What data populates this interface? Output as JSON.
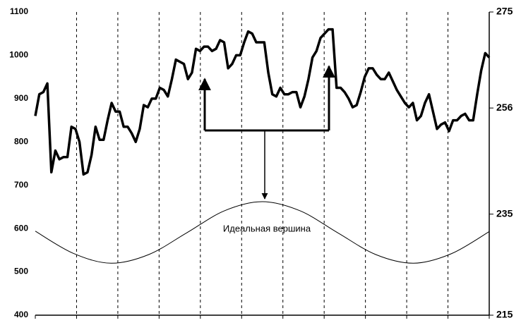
{
  "chart_data": {
    "type": "line",
    "annotation": "Идеальная вершина",
    "series": [
      {
        "color": "#000000",
        "width": 3.5,
        "values": [
          860,
          910,
          915,
          935,
          730,
          780,
          760,
          765,
          765,
          835,
          830,
          800,
          725,
          730,
          770,
          835,
          805,
          805,
          850,
          890,
          870,
          870,
          835,
          835,
          820,
          800,
          830,
          885,
          880,
          900,
          900,
          925,
          920,
          905,
          945,
          990,
          985,
          980,
          945,
          960,
          1015,
          1010,
          1020,
          1020,
          1010,
          1015,
          1035,
          1030,
          970,
          980,
          1000,
          1000,
          1030,
          1055,
          1050,
          1030,
          1030,
          1030,
          960,
          910,
          905,
          925,
          910,
          910,
          915,
          915,
          880,
          905,
          945,
          995,
          1010,
          1040,
          1050,
          1060,
          1060,
          925,
          925,
          915,
          900,
          880,
          885,
          915,
          950,
          970,
          970,
          955,
          945,
          945,
          960,
          940,
          920,
          905,
          890,
          880,
          890,
          850,
          860,
          890,
          910,
          870,
          830,
          840,
          845,
          825,
          850,
          850,
          860,
          865,
          850,
          850,
          910,
          965,
          1005,
          995
        ]
      },
      {
        "color": "#000000",
        "width": 1,
        "smooth": true,
        "values": [
          594,
          543,
          520,
          540,
          590,
          641,
          662,
          641,
          590,
          540,
          520,
          542,
          593
        ]
      }
    ],
    "ylim": [
      400,
      1100
    ],
    "yticks": [
      400,
      500,
      600,
      700,
      800,
      900,
      1000,
      1100
    ],
    "y2lim": [
      215,
      275
    ],
    "y2ticks": [
      215,
      235,
      256,
      275
    ],
    "grid": true
  }
}
